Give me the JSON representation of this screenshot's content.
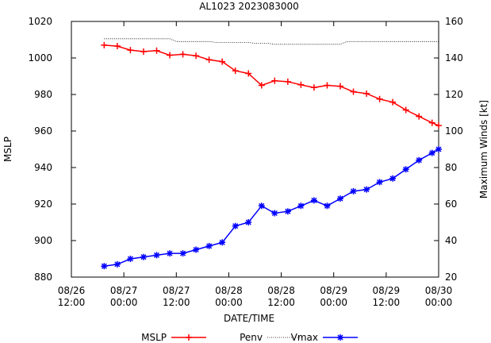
{
  "chart_data": {
    "type": "line",
    "title": "AL1023 2023083000",
    "xlabel": "DATE/TIME",
    "ylabel": "MSLP",
    "y2label": "Maximum Winds [kt]",
    "x_ticks": [
      {
        "line1": "08/26",
        "line2": "12:00",
        "hours": 0
      },
      {
        "line1": "08/27",
        "line2": "00:00",
        "hours": 12
      },
      {
        "line1": "08/27",
        "line2": "12:00",
        "hours": 24
      },
      {
        "line1": "08/28",
        "line2": "00:00",
        "hours": 36
      },
      {
        "line1": "08/28",
        "line2": "12:00",
        "hours": 48
      },
      {
        "line1": "08/29",
        "line2": "00:00",
        "hours": 60
      },
      {
        "line1": "08/29",
        "line2": "12:00",
        "hours": 72
      },
      {
        "line1": "08/30",
        "line2": "00:00",
        "hours": 84
      }
    ],
    "xlim_hours": [
      0,
      84
    ],
    "ylim": [
      880,
      1020
    ],
    "yticks": [
      880,
      900,
      920,
      940,
      960,
      980,
      1000,
      1020
    ],
    "y2lim": [
      20,
      160
    ],
    "y2ticks": [
      20,
      40,
      60,
      80,
      100,
      120,
      140,
      160
    ],
    "grid": false,
    "legend_position": "bottom",
    "series": [
      {
        "name": "MSLP",
        "axis": "y",
        "color": "#ff0000",
        "marker": "plus",
        "hours": [],
        "values": []
      },
      {
        "name": "Penv",
        "axis": "y",
        "color": "#000000",
        "style": "dotted",
        "marker": "none",
        "hours": [
          7.5,
          9,
          10.5,
          12,
          13.5,
          15,
          16.5,
          18,
          19.5,
          21,
          22.5,
          24,
          25.5,
          27,
          28.5,
          30,
          31.5,
          33,
          34.5,
          36,
          37.5,
          39,
          40.5,
          42,
          43.5,
          45,
          46.5,
          48,
          49.5,
          51,
          52.5,
          54,
          55.5,
          57,
          58.5,
          60,
          61.5,
          63,
          64.5,
          66,
          67.5,
          69,
          70.5,
          72,
          73.5,
          75,
          76.5,
          78,
          79.5,
          81,
          82.5,
          84
        ],
        "values": [
          1010.5,
          1010.5,
          1010.5,
          1010.5,
          1010.5,
          1010.5,
          1010.5,
          1010.5,
          1010.5,
          1010.5,
          1010.5,
          1009,
          1009,
          1009,
          1009,
          1009,
          1009,
          1008.5,
          1008.5,
          1008.5,
          1008.5,
          1008.5,
          1008.5,
          1008,
          1008,
          1008,
          1007.5,
          1007.5,
          1007.5,
          1007.5,
          1007.5,
          1007.5,
          1007.5,
          1007.5,
          1007.5,
          1007.5,
          1007.5,
          1009,
          1009,
          1009,
          1009,
          1009,
          1009,
          1009,
          1009,
          1009,
          1009,
          1009,
          1009,
          1009,
          1009,
          1009
        ]
      },
      {
        "name": "Vmax",
        "axis": "y2",
        "color": "#0000ff",
        "marker": "star",
        "hours": [],
        "values": []
      },
      {
        "name": "",
        "axis": "y",
        "color": "#ff0000",
        "marker": "plus",
        "hours": [
          7.5,
          10.5,
          13.5,
          16.5,
          19.5,
          22.5,
          25.5,
          28.5,
          31.5,
          34.5,
          37.5,
          40.5,
          43.5,
          46.5,
          49.5,
          52.5,
          55.5,
          58.5,
          61.5,
          64.5,
          67.5,
          70.5,
          73.5,
          76.5,
          79.5,
          82.5,
          84
        ],
        "values": [
          1007,
          1006.5,
          1004.3,
          1003.5,
          1004,
          1001.5,
          1002,
          1001.2,
          999,
          998,
          993,
          991.5,
          985,
          987.5,
          987,
          985.3,
          983.8,
          985,
          984.5,
          981.5,
          980.5,
          977.5,
          975.8,
          971.5,
          968,
          964.5,
          963
        ]
      },
      {
        "name": "",
        "axis": "y2",
        "color": "#0000ff",
        "marker": "star",
        "hours": [
          7.5,
          10.5,
          13.5,
          16.5,
          19.5,
          22.5,
          25.5,
          28.5,
          31.5,
          34.5,
          37.5,
          40.5,
          43.5,
          46.5,
          49.5,
          52.5,
          55.5,
          58.5,
          61.5,
          64.5,
          67.5,
          70.5,
          73.5,
          76.5,
          79.5,
          82.5,
          84
        ],
        "values": [
          26,
          27,
          30,
          31,
          32,
          33,
          33,
          35,
          37,
          39,
          48,
          50,
          59,
          55,
          56,
          59,
          62,
          59,
          63,
          67,
          68,
          72,
          74,
          79,
          84,
          88,
          90
        ]
      }
    ]
  }
}
